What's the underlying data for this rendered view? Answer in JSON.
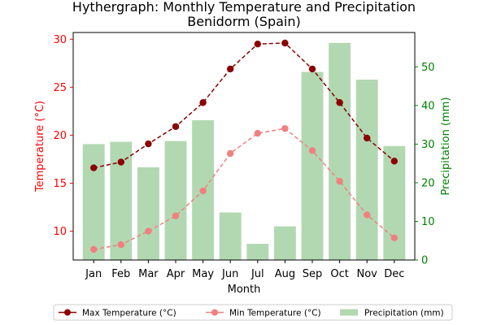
{
  "chart_data": {
    "type": "line+bar",
    "title": "Hythergraph: Monthly Temperature and Precipitation",
    "subtitle": "Benidorm (Spain)",
    "xlabel": "Month",
    "ylabel_left": "Temperature (°C)",
    "ylabel_right": "Precipitation (mm)",
    "categories": [
      "Jan",
      "Feb",
      "Mar",
      "Apr",
      "May",
      "Jun",
      "Jul",
      "Aug",
      "Sep",
      "Oct",
      "Nov",
      "Dec"
    ],
    "ylim_left": [
      7.0,
      30.7
    ],
    "ylim_right": [
      0,
      58.9
    ],
    "yticks_left": [
      10,
      15,
      20,
      25,
      30
    ],
    "yticks_right": [
      0,
      10,
      20,
      30,
      40,
      50
    ],
    "series": [
      {
        "name": "Max Temperature (°C)",
        "kind": "line",
        "axis": "left",
        "color": "#8b0000",
        "style": "dashed",
        "values": [
          16.6,
          17.2,
          19.1,
          20.9,
          23.4,
          26.9,
          29.5,
          29.6,
          26.9,
          23.4,
          19.7,
          17.3
        ]
      },
      {
        "name": "Min Temperature (°C)",
        "kind": "line",
        "axis": "left",
        "color": "#f08080",
        "style": "dashed",
        "values": [
          8.1,
          8.6,
          10.0,
          11.6,
          14.2,
          18.1,
          20.2,
          20.7,
          18.4,
          15.2,
          11.7,
          9.3
        ]
      },
      {
        "name": "Precipitation (mm)",
        "kind": "bar",
        "axis": "right",
        "color": "#b2d8b2",
        "values": [
          30.0,
          30.6,
          24.0,
          30.8,
          36.2,
          12.3,
          4.2,
          8.7,
          48.7,
          56.2,
          46.7,
          29.5
        ]
      }
    ],
    "legend": "bottom-center",
    "grid": false
  }
}
